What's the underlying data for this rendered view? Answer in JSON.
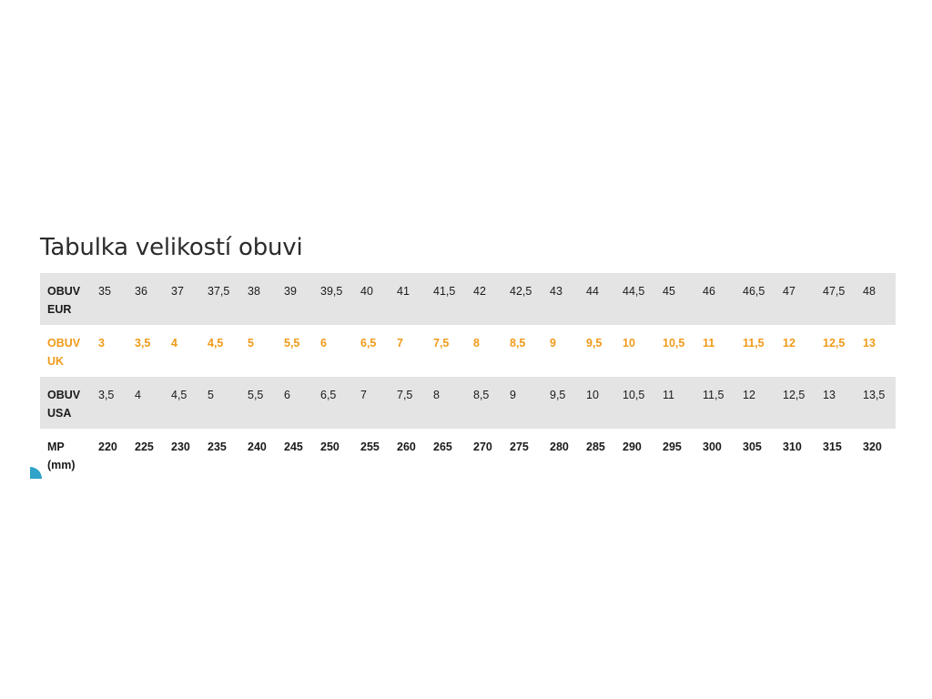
{
  "title": "Tabulka velikostí obuvi",
  "colors": {
    "row_gray": "#e4e4e4",
    "uk_orange": "#f09a1a",
    "text": "#1a1a1a",
    "corner_accent": "#2fa3c8"
  },
  "rows": [
    {
      "label": [
        "OBUV",
        "EUR"
      ],
      "values": [
        "35",
        "36",
        "37",
        "37,5",
        "38",
        "39",
        "39,5",
        "40",
        "41",
        "41,5",
        "42",
        "42,5",
        "43",
        "44",
        "44,5",
        "45",
        "46",
        "46,5",
        "47",
        "47,5",
        "48"
      ]
    },
    {
      "label": [
        "OBUV",
        "UK"
      ],
      "values": [
        "3",
        "3,5",
        "4",
        "4,5",
        "5",
        "5,5",
        "6",
        "6,5",
        "7",
        "7,5",
        "8",
        "8,5",
        "9",
        "9,5",
        "10",
        "10,5",
        "11",
        "11,5",
        "12",
        "12,5",
        "13"
      ]
    },
    {
      "label": [
        "OBUV",
        "USA"
      ],
      "values": [
        "3,5",
        "4",
        "4,5",
        "5",
        "5,5",
        "6",
        "6,5",
        "7",
        "7,5",
        "8",
        "8,5",
        "9",
        "9,5",
        "10",
        "10,5",
        "11",
        "11,5",
        "12",
        "12,5",
        "13",
        "13,5"
      ]
    },
    {
      "label": [
        "MP",
        "(mm)"
      ],
      "values": [
        "220",
        "225",
        "230",
        "235",
        "240",
        "245",
        "250",
        "255",
        "260",
        "265",
        "270",
        "275",
        "280",
        "285",
        "290",
        "295",
        "300",
        "305",
        "310",
        "315",
        "320"
      ]
    }
  ]
}
